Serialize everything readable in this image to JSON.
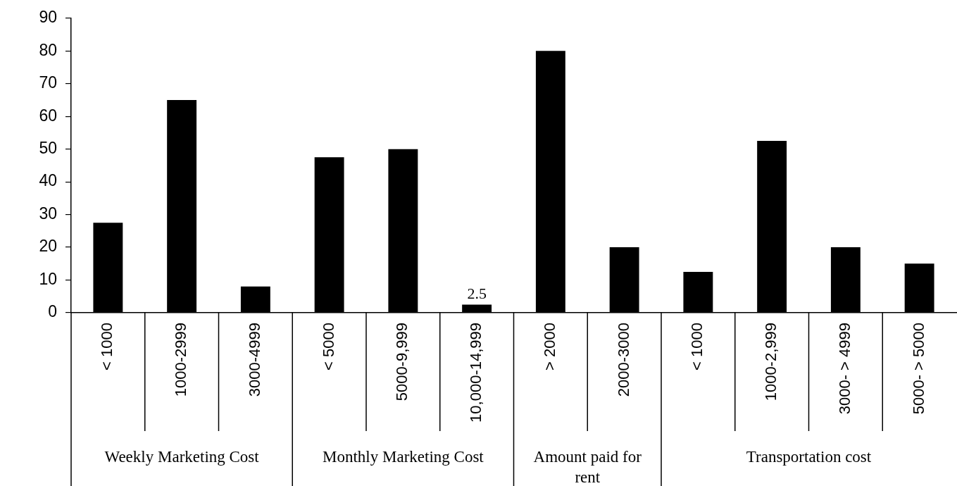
{
  "chart_data": {
    "type": "bar",
    "categories": [
      "< 1000",
      "1000-2999",
      "3000-4999",
      "< 5000",
      "5000-9,999",
      "10,000-14,999",
      "> 2000",
      "2000-3000",
      "< 1000",
      "1000-2,999",
      "3000- > 4999",
      "5000- > 5000"
    ],
    "values": [
      27.5,
      65,
      8,
      47.5,
      50,
      2.5,
      80,
      20,
      12.5,
      52.5,
      20,
      15
    ],
    "color": "#000000",
    "value_labels": [
      null,
      null,
      null,
      null,
      null,
      "2.5",
      null,
      null,
      null,
      null,
      null,
      null
    ],
    "ylim": [
      0,
      90
    ],
    "yticks": [
      0,
      10,
      20,
      30,
      40,
      50,
      60,
      70,
      80,
      90
    ],
    "grid": false,
    "legend": false,
    "annotations": [
      "Weekly Marketing Cost",
      "Monthly Marketing Cost",
      "Amount paid for rent",
      "Transportation cost"
    ]
  }
}
